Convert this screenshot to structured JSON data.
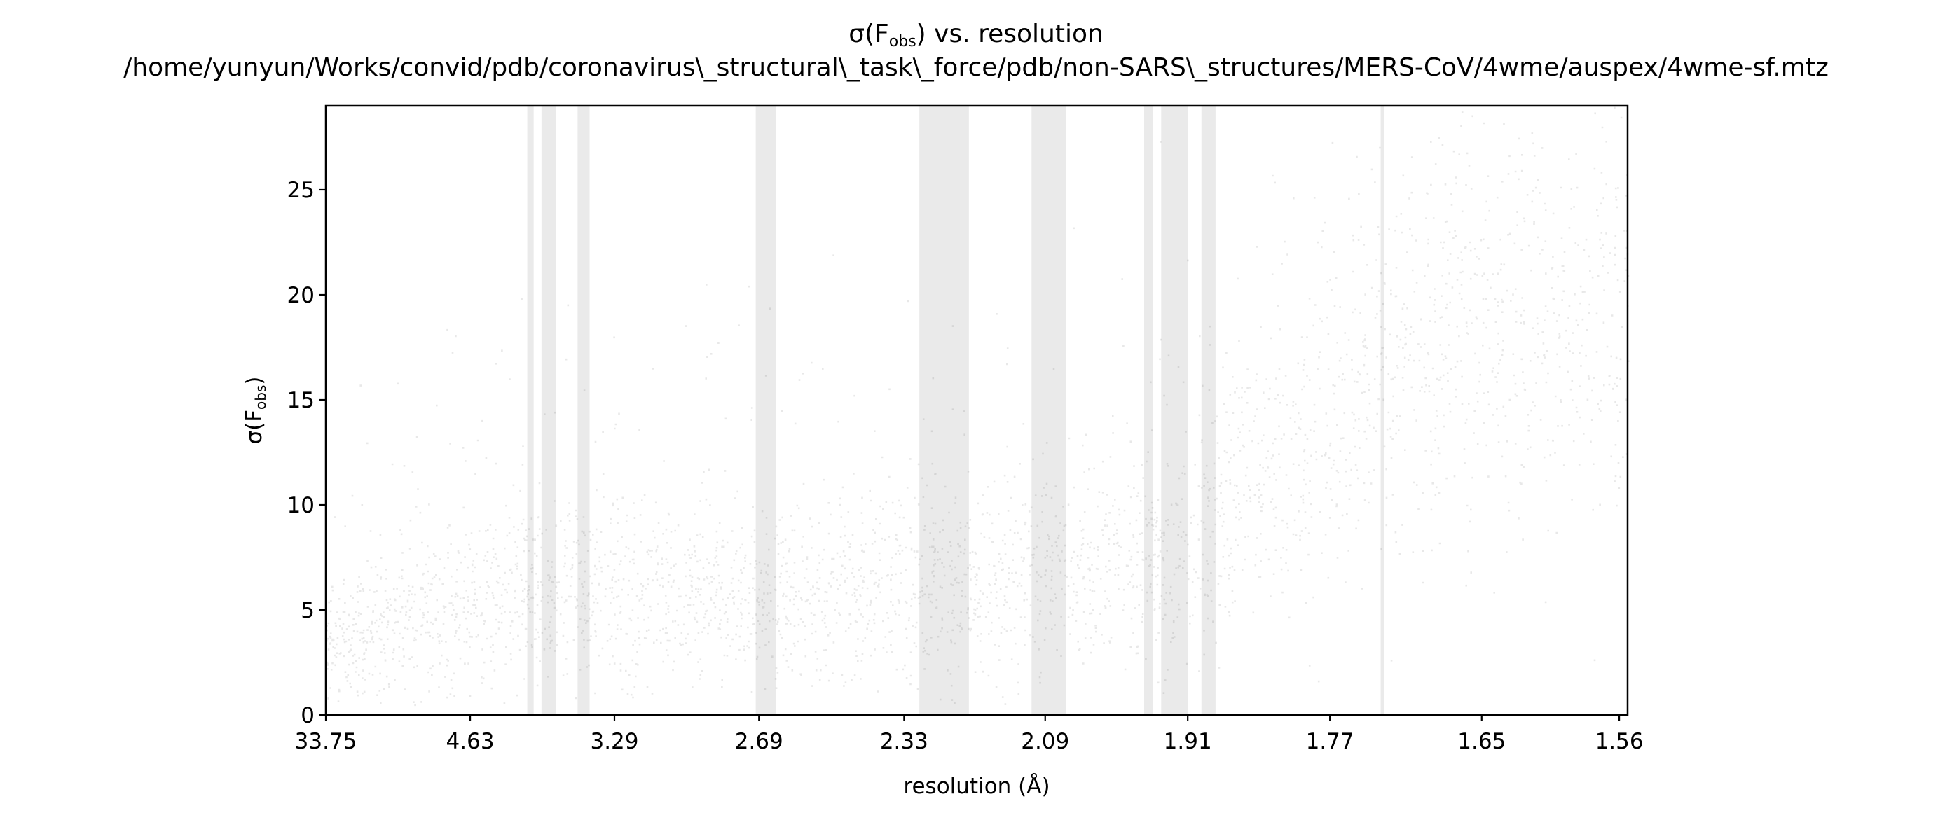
{
  "chart_data": {
    "type": "scatter",
    "title": "σ(Fobs) vs. resolution",
    "title_parts": {
      "prefix": "σ(F",
      "subscript": "obs",
      "suffix": ") vs. resolution"
    },
    "subtitle": "/home/yunyun/Works/convid/pdb/coronavirus\\_structural\\_task\\_force/pdb/non-SARS\\_structures/MERS-CoV/4wme/auspex/4wme-sf.mtz",
    "xlabel": "resolution (Å)",
    "ylabel": "σ(Fobs)",
    "ylabel_parts": {
      "prefix": "σ(F",
      "subscript": "obs",
      "suffix": ")"
    },
    "x_scale": "inverse-square resolution (1/d²)",
    "x_ticks": [
      "33.75",
      "4.63",
      "3.29",
      "2.69",
      "2.33",
      "2.09",
      "1.91",
      "1.77",
      "1.65",
      "1.56"
    ],
    "xlim": [
      33.75,
      1.555
    ],
    "ylim": [
      0,
      29
    ],
    "y_ticks": [
      0,
      5,
      10,
      15,
      20,
      25
    ],
    "y_tick_labels": [
      "0",
      "5",
      "10",
      "15",
      "20",
      "25"
    ],
    "point_color": "#000000",
    "point_alpha": 0.04,
    "band_color": "#d9d9d9",
    "grid": false,
    "legend": "none",
    "density_trend": [
      {
        "resolution": 12.0,
        "median": 3.5
      },
      {
        "resolution": 6.0,
        "median": 4.6
      },
      {
        "resolution": 4.63,
        "median": 5.4
      },
      {
        "resolution": 3.8,
        "median": 6.0
      },
      {
        "resolution": 3.29,
        "median": 6.1
      },
      {
        "resolution": 2.69,
        "median": 5.5
      },
      {
        "resolution": 2.33,
        "median": 6.0
      },
      {
        "resolution": 2.09,
        "median": 6.6
      },
      {
        "resolution": 1.91,
        "median": 8.0
      },
      {
        "resolution": 1.85,
        "median": 11.0
      },
      {
        "resolution": 1.77,
        "median": 14.0
      },
      {
        "resolution": 1.7,
        "median": 17.0
      },
      {
        "resolution": 1.65,
        "median": 18.5
      },
      {
        "resolution": 1.56,
        "median": 19.0
      }
    ],
    "ice_ring_bands": [
      {
        "from": 3.93,
        "to": 3.87
      },
      {
        "from": 3.8,
        "to": 3.68
      },
      {
        "from": 3.52,
        "to": 3.44
      },
      {
        "from": 2.7,
        "to": 2.64
      },
      {
        "from": 2.3,
        "to": 2.21
      },
      {
        "from": 2.11,
        "to": 2.06
      },
      {
        "from": 1.96,
        "to": 1.95
      },
      {
        "from": 1.94,
        "to": 1.91
      },
      {
        "from": 1.895,
        "to": 1.88
      },
      {
        "from": 1.727,
        "to": 1.724
      }
    ]
  }
}
